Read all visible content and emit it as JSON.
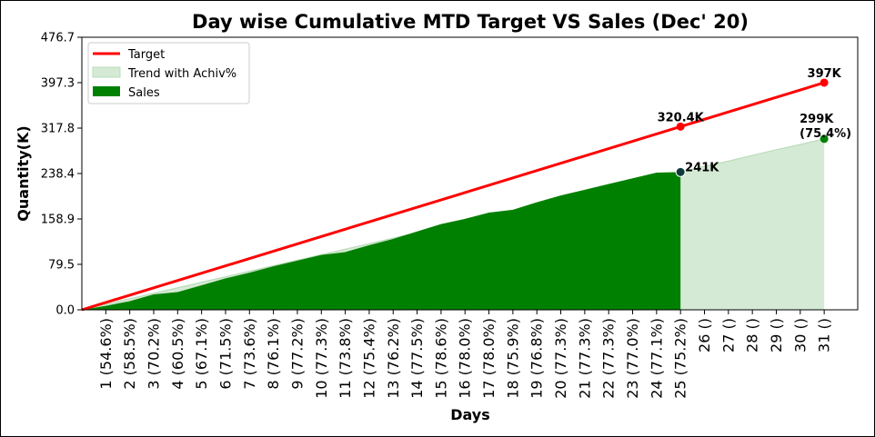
{
  "colors": {
    "target": "#ff0000",
    "sales": "#008000",
    "trend_fill": "#d5ead5",
    "trend_edge": "#b9dcb9",
    "actual_marker": "#0d3b3b"
  },
  "chart_data": {
    "type": "area",
    "title": "Day wise Cumulative MTD Target VS Sales (Dec' 20)",
    "xlabel": "Days",
    "ylabel": "Quantity(K)",
    "ylim": [
      0,
      476.7
    ],
    "yticks": [
      0.0,
      79.5,
      158.9,
      238.4,
      317.8,
      397.3,
      476.7
    ],
    "ytick_labels": [
      "0.0",
      "79.5",
      "158.9",
      "238.4",
      "317.8",
      "397.3",
      "476.7"
    ],
    "grid": false,
    "legend": {
      "placement": "top-left",
      "entries": [
        "Target",
        "Trend with Achiv%",
        "Sales"
      ]
    },
    "x": [
      1,
      2,
      3,
      4,
      5,
      6,
      7,
      8,
      9,
      10,
      11,
      12,
      13,
      14,
      15,
      16,
      17,
      18,
      19,
      20,
      21,
      22,
      23,
      24,
      25,
      26,
      27,
      28,
      29,
      30,
      31
    ],
    "x_tick_labels": [
      "1 (54.6%)",
      "2 (58.5%)",
      "3 (70.2%)",
      "4 (60.5%)",
      "5 (67.1%)",
      "6 (71.5%)",
      "7 (73.6%)",
      "8 (76.1%)",
      "9 (77.2%)",
      "10 (77.3%)",
      "11 (73.8%)",
      "12 (75.4%)",
      "13 (76.2%)",
      "14 (77.5%)",
      "15 (78.6%)",
      "16 (78.0%)",
      "17 (78.0%)",
      "18 (75.9%)",
      "19 (76.8%)",
      "20 (77.3%)",
      "21 (77.3%)",
      "22 (77.3%)",
      "23 (77.0%)",
      "24 (77.1%)",
      "25 (75.2%)",
      "26 ()",
      "27 ()",
      "28 ()",
      "29 ()",
      "30 ()",
      "31 ()"
    ],
    "series": [
      {
        "name": "Target",
        "type": "line",
        "x": [
          0,
          31
        ],
        "values": [
          0,
          397.3
        ]
      },
      {
        "name": "Trend with Achiv%",
        "type": "area",
        "x": [
          0,
          25,
          26,
          27,
          28,
          29,
          30,
          31
        ],
        "values": [
          0,
          241,
          251,
          260,
          270,
          280,
          289,
          299
        ]
      },
      {
        "name": "Sales",
        "type": "area",
        "x": [
          0,
          1,
          2,
          3,
          4,
          5,
          6,
          7,
          8,
          9,
          10,
          11,
          12,
          13,
          14,
          15,
          16,
          17,
          18,
          19,
          20,
          21,
          22,
          23,
          24,
          25
        ],
        "values": [
          0,
          7,
          15,
          27,
          31,
          43,
          55,
          65,
          76,
          86,
          96,
          101,
          113,
          124,
          137,
          150,
          159,
          170,
          175,
          188,
          200,
          210,
          220,
          230,
          240,
          241
        ]
      }
    ],
    "annotations": [
      {
        "x": 25,
        "y": 320.4,
        "text": "320.4K",
        "series": "Target"
      },
      {
        "x": 31,
        "y": 397.3,
        "text": "397K",
        "series": "Target"
      },
      {
        "x": 25,
        "y": 241,
        "text": "241K",
        "series": "Sales"
      },
      {
        "x": 31,
        "y": 299,
        "text": "299K",
        "text2": "(75.4%)",
        "series": "Trend with Achiv%"
      }
    ]
  }
}
